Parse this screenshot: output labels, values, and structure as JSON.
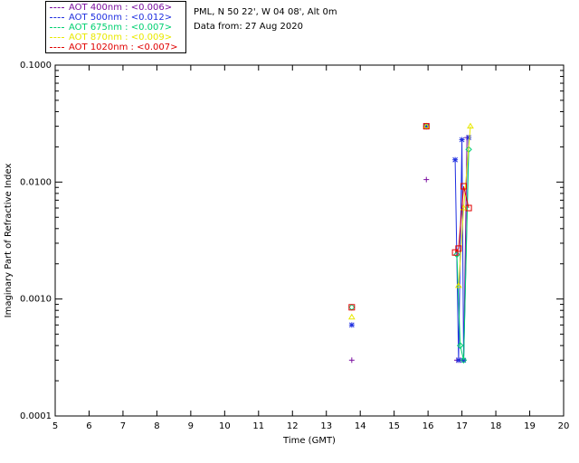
{
  "legend": [
    {
      "label": "AOT  400nm : <0.006>",
      "color": "#7b0fa0"
    },
    {
      "label": "AOT  500nm : <0.012>",
      "color": "#1f2fe0"
    },
    {
      "label": "AOT  675nm : <0.007>",
      "color": "#00d070"
    },
    {
      "label": "AOT  870nm : <0.009>",
      "color": "#e8e800"
    },
    {
      "label": "AOT 1020nm : <0.007>",
      "color": "#e00000"
    }
  ],
  "info": {
    "site": "PML, N 50 22', W 04 08', Alt 0m",
    "date": "Data from: 27 Aug 2020"
  },
  "chart_data": {
    "type": "scatter",
    "title": "",
    "xlabel": "Time (GMT)",
    "ylabel": "Imaginary Part of Refractive Index",
    "xlim": [
      5,
      20
    ],
    "ylim": [
      0.0001,
      0.1
    ],
    "yscale": "log",
    "x_ticks": [
      "5",
      "6",
      "7",
      "8",
      "9",
      "10",
      "11",
      "12",
      "13",
      "14",
      "15",
      "16",
      "17",
      "18",
      "19",
      "20"
    ],
    "y_ticks": [
      "0.0001",
      "0.0010",
      "0.0100",
      "0.1000"
    ],
    "grid": false,
    "legend_position": "top-left, outside plot",
    "series": [
      {
        "name": "AOT  400nm : <0.006>",
        "color": "#7b0fa0",
        "marker": "plus",
        "x": [
          13.75,
          15.95,
          16.85,
          16.95,
          17.05,
          17.15
        ],
        "y": [
          0.0003,
          0.0105,
          0.0003,
          0.0003,
          0.0003,
          0.024
        ]
      },
      {
        "name": "AOT  500nm : <0.012>",
        "color": "#1f2fe0",
        "marker": "asterisk",
        "x": [
          13.75,
          15.95,
          16.8,
          16.9,
          17.0,
          17.05,
          17.2
        ],
        "y": [
          0.0006,
          0.03,
          0.0155,
          0.0003,
          0.023,
          0.0003,
          0.024
        ]
      },
      {
        "name": "AOT  675nm : <0.007>",
        "color": "#00d070",
        "marker": "diamond",
        "x": [
          13.75,
          15.95,
          16.85,
          16.95,
          17.05,
          17.2
        ],
        "y": [
          0.00085,
          0.03,
          0.0024,
          0.0004,
          0.0003,
          0.019
        ]
      },
      {
        "name": "AOT  870nm : <0.009>",
        "color": "#e8e800",
        "marker": "triangle",
        "x": [
          13.75,
          15.95,
          16.9,
          17.05,
          17.25
        ],
        "y": [
          0.0007,
          0.03,
          0.0013,
          0.006,
          0.03
        ]
      },
      {
        "name": "AOT 1020nm : <0.007>",
        "color": "#e00000",
        "marker": "square",
        "x": [
          13.75,
          15.95,
          16.8,
          16.9,
          17.05,
          17.2
        ],
        "y": [
          0.00085,
          0.03,
          0.0025,
          0.0027,
          0.0092,
          0.006
        ]
      }
    ]
  }
}
